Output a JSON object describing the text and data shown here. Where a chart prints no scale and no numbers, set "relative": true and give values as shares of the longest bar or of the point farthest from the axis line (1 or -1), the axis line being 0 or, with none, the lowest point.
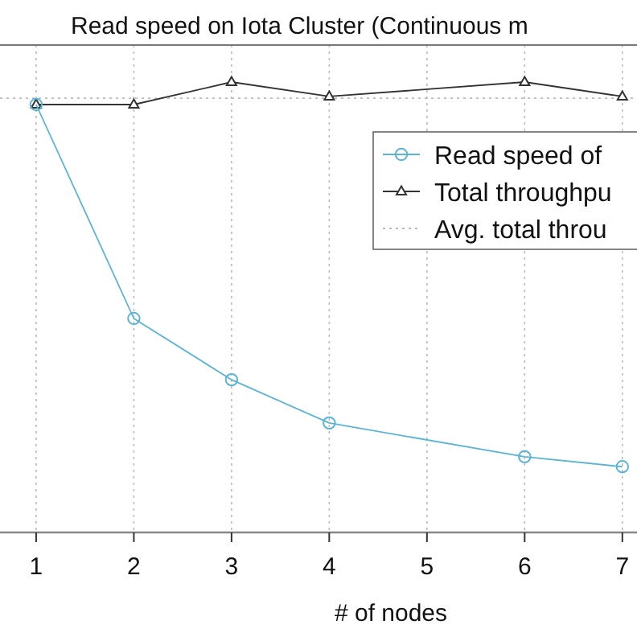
{
  "chart_data": {
    "type": "line",
    "title": "Read speed on Iota Cluster (Continuous m",
    "xlabel": "# of nodes",
    "relative": true,
    "xlim": [
      0.63,
      7.15
    ],
    "xticks": [
      1,
      2,
      3,
      4,
      5,
      6,
      7
    ],
    "grid": "x",
    "legend": "top right",
    "series": [
      {
        "name": "Read speed of",
        "color": "#5ab4d6",
        "marker": "circle",
        "x": [
          1,
          2,
          3,
          4,
          6,
          7
        ],
        "values": [
          0.95,
          0.475,
          0.339,
          0.243,
          0.168,
          0.146
        ]
      },
      {
        "name": "Total throughpu",
        "color": "#333333",
        "marker": "triangle",
        "x": [
          1,
          2,
          3,
          4,
          6,
          7
        ],
        "values": [
          0.95,
          0.95,
          1,
          0.968,
          1,
          0.968
        ]
      }
    ],
    "ref_lines": [
      {
        "axis": "y",
        "value": 0.964,
        "label": "Avg. total throu",
        "color": "#bbbbbb",
        "line_style": "dotted"
      }
    ]
  }
}
